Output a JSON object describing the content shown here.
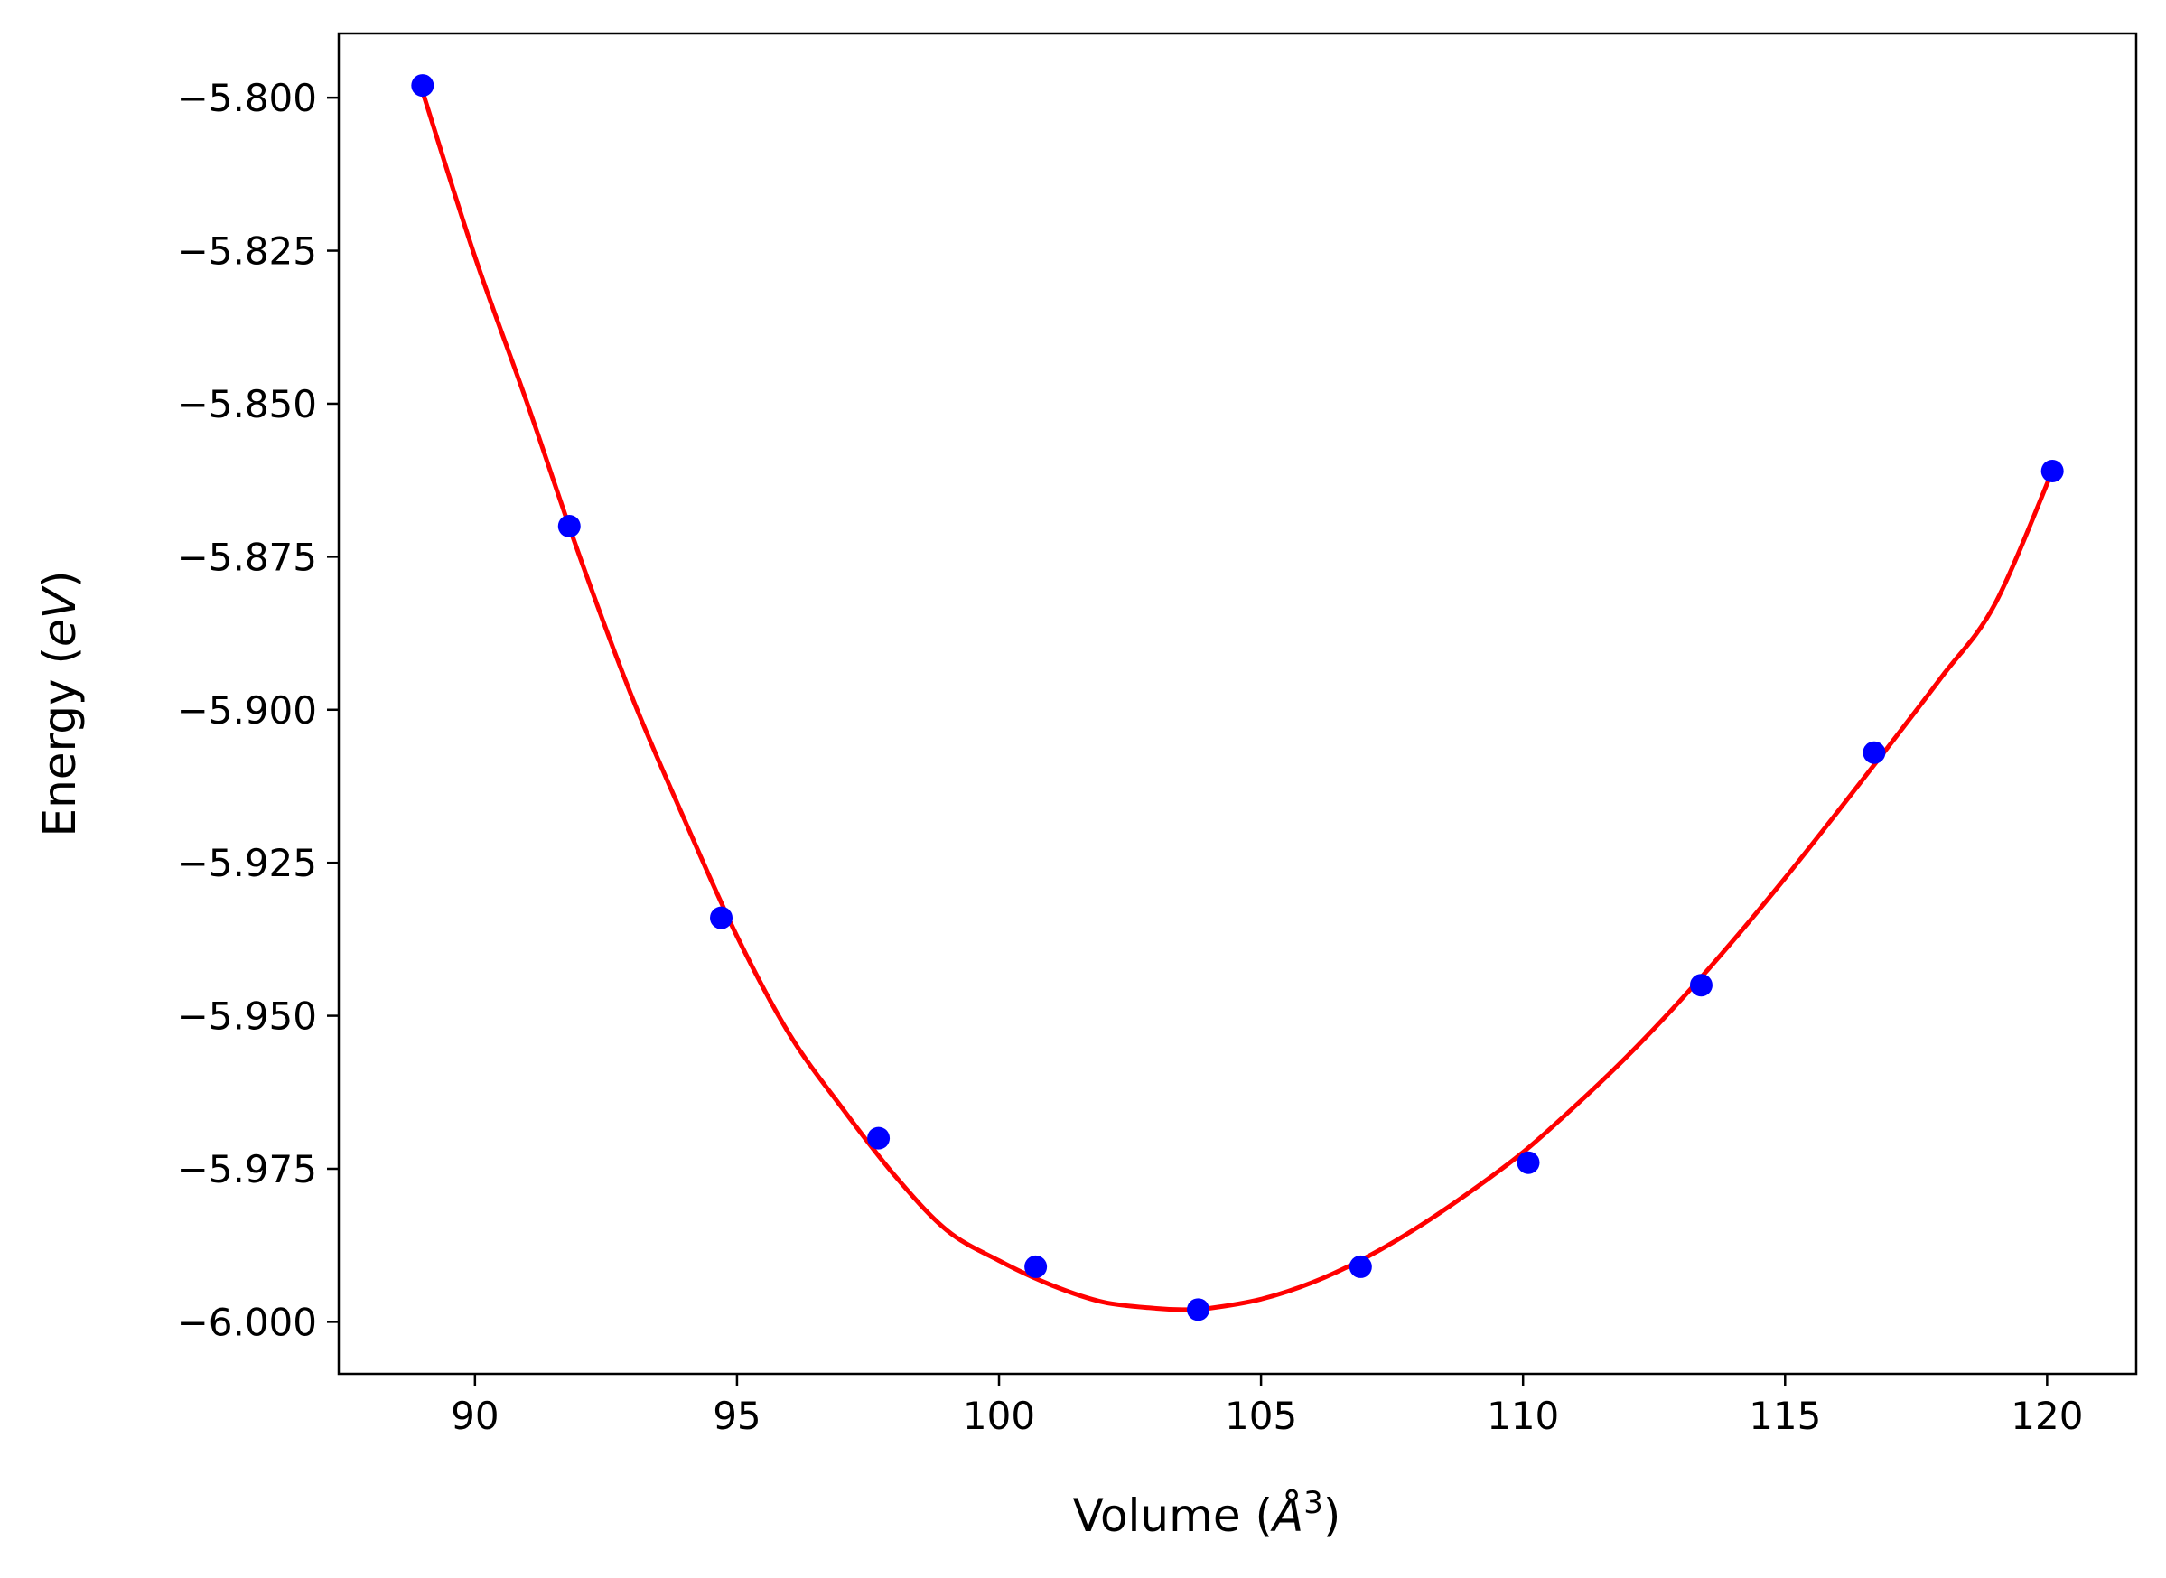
{
  "chart_data": {
    "type": "scatter",
    "title": "",
    "xlabel_main": "Volume (",
    "xlabel_unit": "Å",
    "xlabel_sup": "3",
    "xlabel_close": ")",
    "ylabel_main": "Energy (",
    "ylabel_unit": "eV",
    "ylabel_close": ")",
    "xlim": [
      87.4,
      121.7
    ],
    "ylim": [
      -6.0085,
      -5.7895
    ],
    "x_ticks": [
      90,
      95,
      100,
      105,
      110,
      115,
      120
    ],
    "x_tick_labels": [
      "90",
      "95",
      "100",
      "105",
      "110",
      "115",
      "120"
    ],
    "y_ticks": [
      -5.8,
      -5.825,
      -5.85,
      -5.875,
      -5.9,
      -5.925,
      -5.95,
      -5.975,
      -6.0
    ],
    "y_tick_labels": [
      "−5.800",
      "−5.825",
      "−5.850",
      "−5.875",
      "−5.900",
      "−5.925",
      "−5.950",
      "−5.975",
      "−6.000"
    ],
    "grid": false,
    "series": [
      {
        "kind": "points",
        "color": "#0000ff",
        "x": [
          89.0,
          91.8,
          94.7,
          97.7,
          100.7,
          103.8,
          106.9,
          110.1,
          113.4,
          116.7,
          120.1
        ],
        "y": [
          -5.798,
          -5.87,
          -5.934,
          -5.97,
          -5.991,
          -5.998,
          -5.991,
          -5.974,
          -5.945,
          -5.907,
          -5.861
        ]
      },
      {
        "kind": "fit-curve",
        "color": "#ff0000",
        "x": [
          89.0,
          90.0,
          91.0,
          92.0,
          93.0,
          94.0,
          95.0,
          96.0,
          97.0,
          98.0,
          99.0,
          100.0,
          101.0,
          102.0,
          103.0,
          103.5,
          104.0,
          105.0,
          106.0,
          107.0,
          108.0,
          109.0,
          110.0,
          111.0,
          112.0,
          113.0,
          114.0,
          115.0,
          116.0,
          117.0,
          118.0,
          119.0,
          120.1
        ],
        "y": [
          -5.799,
          -5.826,
          -5.85,
          -5.875,
          -5.898,
          -5.918,
          -5.937,
          -5.953,
          -5.965,
          -5.976,
          -5.985,
          -5.99,
          -5.994,
          -5.9968,
          -5.9978,
          -5.998,
          -5.9978,
          -5.9963,
          -5.9935,
          -5.9895,
          -5.9845,
          -5.9787,
          -5.9723,
          -5.9647,
          -5.9565,
          -5.9475,
          -5.9378,
          -5.9275,
          -5.9167,
          -5.9057,
          -5.8945,
          -5.8828,
          -5.861
        ]
      }
    ]
  }
}
